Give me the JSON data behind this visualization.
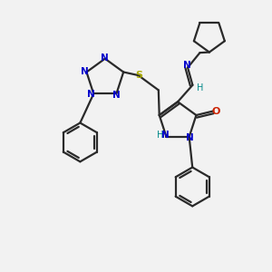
{
  "bg_color": "#f2f2f2",
  "bond_color": "#2a2a2a",
  "N_color": "#0000cc",
  "O_color": "#cc2200",
  "S_color": "#aaaa00",
  "H_color": "#008888",
  "line_width": 1.6,
  "figsize": [
    3.0,
    3.0
  ],
  "dpi": 100,
  "xlim": [
    0,
    10
  ],
  "ylim": [
    0,
    10
  ]
}
